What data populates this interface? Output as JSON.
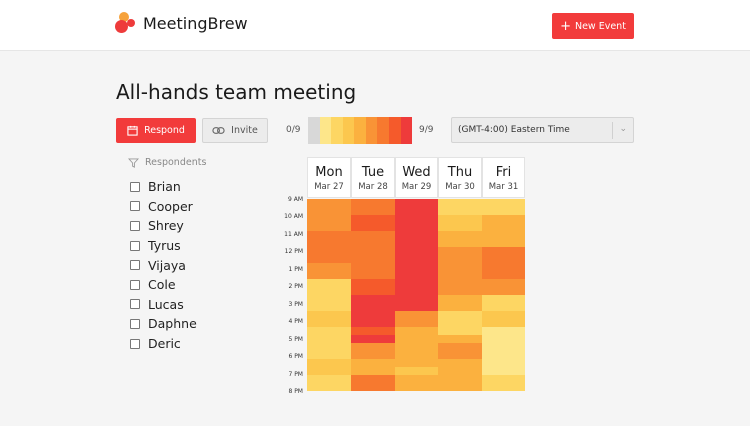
{
  "header": {
    "brand": "MeetingBrew",
    "new_event_label": "New Event"
  },
  "event": {
    "title": "All-hands team meeting"
  },
  "toolbar": {
    "respond_label": "Respond",
    "invite_label": "Invite",
    "legend_min": "0/9",
    "legend_max": "9/9",
    "legend_colors": [
      "#d8d8d8",
      "#fde68a",
      "#fdd663",
      "#fcc74e",
      "#fbb13f",
      "#f99336",
      "#f7792f",
      "#f55a2b",
      "#ee3b3b"
    ],
    "timezone": "(GMT-4:00) Eastern Time"
  },
  "respondents": {
    "heading": "Respondents",
    "names": [
      "Brian",
      "Cooper",
      "Shrey",
      "Tyrus",
      "Vijaya",
      "Cole",
      "Lucas",
      "Daphne",
      "Deric"
    ]
  },
  "calendar": {
    "days": [
      {
        "name": "Mon",
        "date": "Mar 27"
      },
      {
        "name": "Tue",
        "date": "Mar 28"
      },
      {
        "name": "Wed",
        "date": "Mar 29"
      },
      {
        "name": "Thu",
        "date": "Mar 30"
      },
      {
        "name": "Fri",
        "date": "Mar 31"
      }
    ],
    "times": [
      "9 AM",
      "10 AM",
      "11 AM",
      "12 PM",
      "1 PM",
      "2 PM",
      "3 PM",
      "4 PM",
      "5 PM",
      "6 PM",
      "7 PM",
      "8 PM"
    ],
    "availability": [
      [
        5,
        5,
        5,
        5,
        6,
        6,
        6,
        6,
        5,
        5,
        2,
        2,
        2,
        2,
        3,
        3,
        2,
        2,
        2,
        2,
        3,
        3,
        2,
        2
      ],
      [
        6,
        6,
        7,
        7,
        6,
        6,
        6,
        6,
        6,
        6,
        7,
        7,
        8,
        8,
        8,
        8,
        7,
        8,
        5,
        5,
        4,
        4,
        6,
        6
      ],
      [
        9,
        8,
        9,
        9,
        8,
        8,
        9,
        9,
        9,
        9,
        9,
        9,
        9,
        8,
        5,
        5,
        4,
        4,
        4,
        4,
        4,
        3,
        4,
        4
      ],
      [
        2,
        2,
        3,
        3,
        4,
        4,
        5,
        5,
        5,
        5,
        5,
        5,
        4,
        4,
        2,
        2,
        2,
        4,
        5,
        5,
        4,
        4,
        4,
        4
      ],
      [
        2,
        2,
        4,
        4,
        4,
        4,
        6,
        6,
        6,
        6,
        5,
        5,
        2,
        2,
        3,
        3,
        1,
        1,
        1,
        1,
        1,
        1,
        2,
        2
      ]
    ]
  }
}
